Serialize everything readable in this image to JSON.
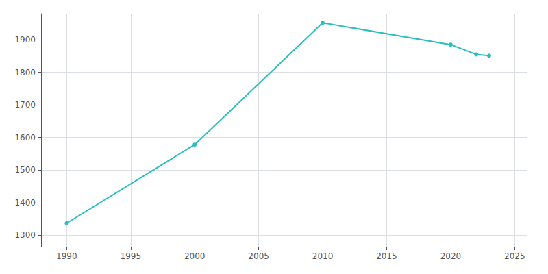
{
  "chart_data": {
    "type": "line",
    "x": [
      1990,
      2000,
      2010,
      2020,
      2022,
      2023
    ],
    "values": [
      1337,
      1578,
      1952,
      1885,
      1855,
      1851
    ],
    "color": "#2abfbf",
    "marker": "circle",
    "xlim": [
      1988,
      2026
    ],
    "ylim": [
      1265,
      1980
    ],
    "xticks": [
      1990,
      1995,
      2000,
      2005,
      2010,
      2015,
      2020,
      2025
    ],
    "yticks": [
      1300,
      1400,
      1500,
      1600,
      1700,
      1800,
      1900
    ],
    "grid": true
  }
}
